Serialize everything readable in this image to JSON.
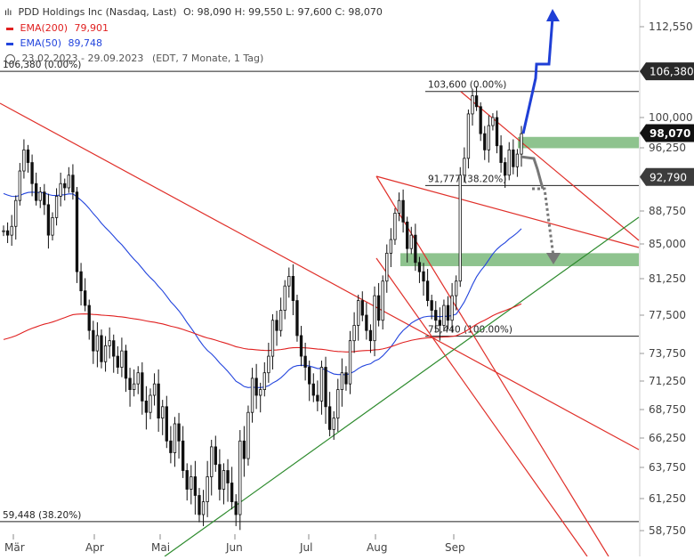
{
  "header": {
    "title": "PDD Holdings Inc (Nasdaq, Last)",
    "ohlc": "O: 98,090   H: 99,550   L: 97,600   C: 98,070",
    "ema200_label": "EMA(200)",
    "ema200_value": "79,901",
    "ema50_label": "EMA(50)",
    "ema50_value": "89,748",
    "range": "23.02.2023 - 29.09.2023",
    "range_note": "(EDT, 7 Monate, 1 Tag)"
  },
  "colors": {
    "candle": "#111111",
    "ema200": "#e02020",
    "ema50": "#2244dd",
    "trend_red": "#e0302a",
    "trend_green": "#2e8b2e",
    "zone": "#7ab87a",
    "arrow_blue": "#1f3fd6",
    "arrow_gray": "#777777"
  },
  "chart_data": {
    "type": "candlestick",
    "title": "PDD Holdings Inc (Nasdaq, Last)",
    "x_labels": [
      "Mär",
      "Apr",
      "Mai",
      "Jun",
      "Jul",
      "Aug",
      "Sep"
    ],
    "y_ticks": [
      "112,550",
      "100,000",
      "96,250",
      "88,750",
      "85,000",
      "81,250",
      "77,500",
      "73,750",
      "71,250",
      "68,750",
      "66,250",
      "63,750",
      "61,250",
      "58,750"
    ],
    "ylim": [
      58.0,
      115.0
    ],
    "last_price": "98,070",
    "price_tags": [
      {
        "label": "106,380",
        "value": 106.38,
        "style": "dark"
      },
      {
        "label": "98,070",
        "value": 98.07,
        "style": "black"
      },
      {
        "label": "92,790",
        "value": 92.79,
        "style": "light"
      }
    ],
    "levels": [
      {
        "label": "106,380 (0.00%)",
        "value": 106.38
      },
      {
        "label": "103,600 (0.00%)",
        "value": 103.6
      },
      {
        "label": "91,777 (38.20%)",
        "value": 91.78
      },
      {
        "label": "75,440 (100.00%)",
        "value": 75.44
      },
      {
        "label": "59,448 (38.20%)",
        "value": 59.45
      }
    ],
    "zones": [
      {
        "low": 96.2,
        "high": 97.6
      },
      {
        "low": 82.6,
        "high": 84.0
      }
    ],
    "closes": [
      86.5,
      86.0,
      87.0,
      90.0,
      93.5,
      96.0,
      94.5,
      92.0,
      90.0,
      91.0,
      89.5,
      86.0,
      88.0,
      90.5,
      92.0,
      91.5,
      93.0,
      91.0,
      82.0,
      80.0,
      78.5,
      76.0,
      74.0,
      75.5,
      73.0,
      74.5,
      75.0,
      73.5,
      72.5,
      74.0,
      71.5,
      70.5,
      71.0,
      72.0,
      69.5,
      68.5,
      70.0,
      71.0,
      68.0,
      69.0,
      66.0,
      65.0,
      67.5,
      66.0,
      63.5,
      62.0,
      63.0,
      61.5,
      60.0,
      61.0,
      63.0,
      65.5,
      64.0,
      62.0,
      63.5,
      62.5,
      61.0,
      60.0,
      66.0,
      64.5,
      68.5,
      71.5,
      70.0,
      70.5,
      72.0,
      73.5,
      77.0,
      76.0,
      78.0,
      80.5,
      81.5,
      79.0,
      75.5,
      73.5,
      72.5,
      71.0,
      70.0,
      69.5,
      72.5,
      69.0,
      67.0,
      68.0,
      70.5,
      72.0,
      71.0,
      75.0,
      76.5,
      79.0,
      77.5,
      76.0,
      75.0,
      79.5,
      77.0,
      81.0,
      84.0,
      85.5,
      88.5,
      90.0,
      87.5,
      84.5,
      86.0,
      83.0,
      82.0,
      81.0,
      79.0,
      78.0,
      77.0,
      76.5,
      78.5,
      77.0,
      79.5,
      81.0,
      93.0,
      95.0,
      100.5,
      103.0,
      101.5,
      98.0,
      96.0,
      99.0,
      100.0,
      96.5,
      94.5,
      93.0,
      96.0,
      94.0,
      95.5,
      98.0
    ]
  }
}
